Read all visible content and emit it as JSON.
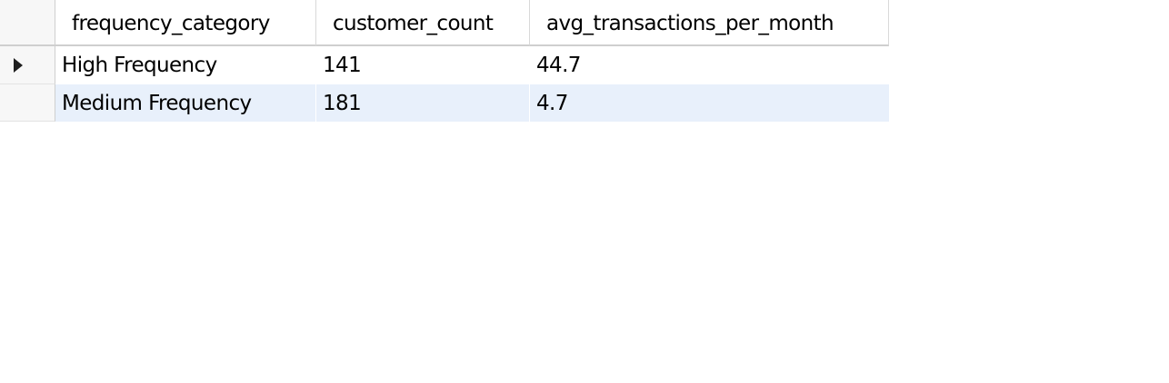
{
  "grid": {
    "columns": [
      "frequency_category",
      "customer_count",
      "avg_transactions_per_month"
    ],
    "rows": [
      {
        "frequency_category": "High Frequency",
        "customer_count": "141",
        "avg_transactions_per_month": "44.7",
        "current": true
      },
      {
        "frequency_category": "Medium Frequency",
        "customer_count": "181",
        "avg_transactions_per_month": "4.7",
        "current": false
      }
    ]
  },
  "colors": {
    "header_background": "#ffffff",
    "row_header_background": "#f7f7f7",
    "alternate_row_background": "#e8f0fb",
    "grid_line": "#cfcfcf"
  },
  "icons": {
    "current_row_indicator": "current-row-arrow-icon"
  }
}
